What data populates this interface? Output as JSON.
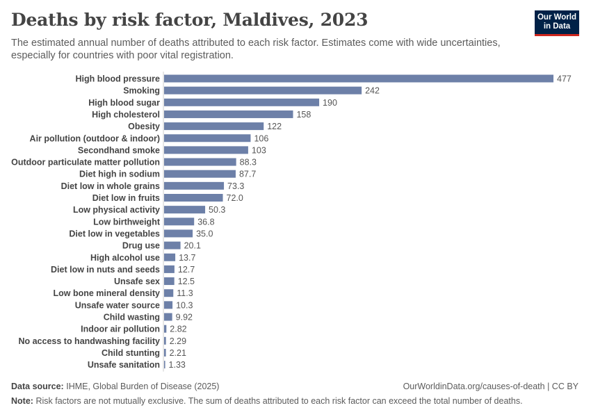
{
  "header": {
    "title": "Deaths by risk factor, Maldives, 2023",
    "subtitle": "The estimated annual number of deaths attributed to each risk factor. Estimates come with wide uncertainties, especially for countries with poor vital registration.",
    "logo_line1": "Our World",
    "logo_line2": "in Data",
    "logo_color": "#002147",
    "logo_accent": "#ce261e"
  },
  "chart_data": {
    "type": "bar",
    "orientation": "horizontal",
    "bar_color": "#6d80a8",
    "categories": [
      "High blood pressure",
      "Smoking",
      "High blood sugar",
      "High cholesterol",
      "Obesity",
      "Air pollution (outdoor & indoor)",
      "Secondhand smoke",
      "Outdoor particulate matter pollution",
      "Diet high in sodium",
      "Diet low in whole grains",
      "Diet low in fruits",
      "Low physical activity",
      "Low birthweight",
      "Diet low in vegetables",
      "Drug use",
      "High alcohol use",
      "Diet low in nuts and seeds",
      "Unsafe sex",
      "Low bone mineral density",
      "Unsafe water source",
      "Child wasting",
      "Indoor air pollution",
      "No access to handwashing facility",
      "Child stunting",
      "Unsafe sanitation"
    ],
    "values": [
      477,
      242,
      190,
      158,
      122,
      106,
      103,
      88.3,
      87.7,
      73.3,
      72.0,
      50.3,
      36.8,
      35.0,
      20.1,
      13.7,
      12.7,
      12.5,
      11.3,
      10.3,
      9.92,
      2.82,
      2.29,
      2.21,
      1.33
    ],
    "value_labels": [
      "477",
      "242",
      "190",
      "158",
      "122",
      "106",
      "103",
      "88.3",
      "87.7",
      "73.3",
      "72.0",
      "50.3",
      "36.8",
      "35.0",
      "20.1",
      "13.7",
      "12.7",
      "12.5",
      "11.3",
      "10.3",
      "9.92",
      "2.82",
      "2.29",
      "2.21",
      "1.33"
    ],
    "xlim": [
      0,
      477
    ],
    "grid": false
  },
  "footer": {
    "source_label": "Data source:",
    "source_text": "IHME, Global Burden of Disease (2025)",
    "url_text": "OurWorldinData.org/causes-of-death | CC BY",
    "note_label": "Note:",
    "note_text": "Risk factors are not mutually exclusive. The sum of deaths attributed to each risk factor can exceed the total number of deaths."
  }
}
